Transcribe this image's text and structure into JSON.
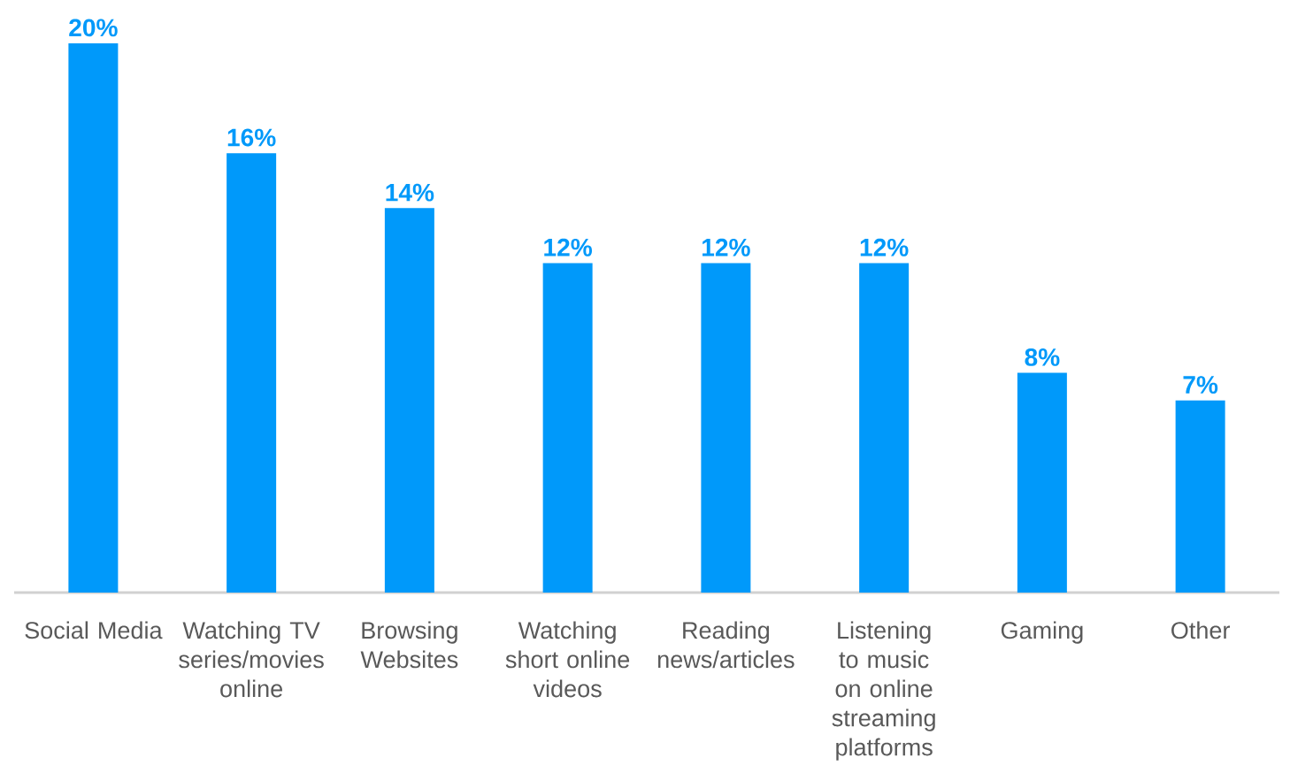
{
  "chart_data": {
    "type": "bar",
    "categories": [
      "Social Media",
      "Watching TV series/movies online",
      "Browsing Websites",
      "Watching short online videos",
      "Reading news/articles",
      "Listening to music on online streaming platforms",
      "Gaming",
      "Other"
    ],
    "values": [
      20,
      16,
      14,
      12,
      12,
      12,
      8,
      7
    ],
    "value_labels": [
      "20%",
      "16%",
      "14%",
      "12%",
      "12%",
      "12%",
      "8%",
      "7%"
    ],
    "color": "#0099fa"
  }
}
